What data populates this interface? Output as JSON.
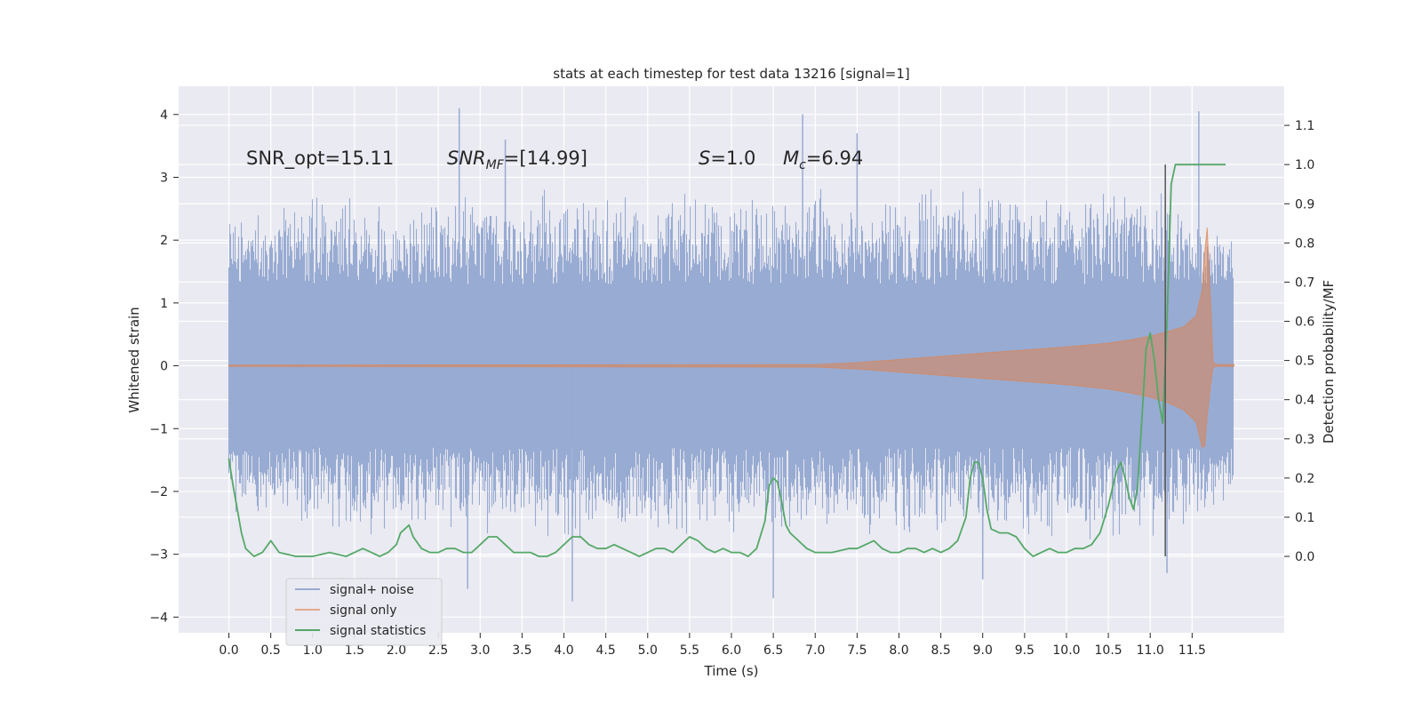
{
  "chart_data": {
    "type": "line",
    "title": "stats at each timestep for test data 13216 [signal=1]",
    "xlabel": "Time (s)",
    "ylabel_left": "Whitened strain",
    "ylabel_right": "Detection probability/MF",
    "xlim": [
      -0.6,
      12.6
    ],
    "ylim_left": [
      -4.25,
      4.45
    ],
    "ylim_right": [
      -0.195,
      1.2
    ],
    "x_ticks": [
      0.0,
      0.5,
      1.0,
      1.5,
      2.0,
      2.5,
      3.0,
      3.5,
      4.0,
      4.5,
      5.0,
      5.5,
      6.0,
      6.5,
      7.0,
      7.5,
      8.0,
      8.5,
      9.0,
      9.5,
      10.0,
      10.5,
      11.0,
      11.5
    ],
    "x_tick_labels": [
      "0.0",
      "0.5",
      "1.0",
      "1.5",
      "2.0",
      "2.5",
      "3.0",
      "3.5",
      "4.0",
      "4.5",
      "5.0",
      "5.5",
      "6.0",
      "6.5",
      "7.0",
      "7.5",
      "8.0",
      "8.5",
      "9.0",
      "9.5",
      "10.0",
      "10.5",
      "11.0",
      "11.5"
    ],
    "y_left_ticks": [
      -4,
      -3,
      -2,
      -1,
      0,
      1,
      2,
      3,
      4
    ],
    "y_left_tick_labels": [
      "−4",
      "−3",
      "−2",
      "−1",
      "0",
      "1",
      "2",
      "3",
      "4"
    ],
    "y_right_ticks": [
      0.0,
      0.1,
      0.2,
      0.3,
      0.4,
      0.5,
      0.6,
      0.7,
      0.8,
      0.9,
      1.0,
      1.1
    ],
    "y_right_tick_labels": [
      "0.0",
      "0.1",
      "0.2",
      "0.3",
      "0.4",
      "0.5",
      "0.6",
      "0.7",
      "0.8",
      "0.9",
      "1.0",
      "1.1"
    ],
    "grid": true,
    "legend_position": "lower-left",
    "colors": {
      "background": "#eaeaf2",
      "grid": "#ffffff",
      "signal_noise": "#98abd2",
      "signal_only": "#dd8452",
      "signal_statistics": "#55a868",
      "marker_line": "#555555"
    },
    "annotations": {
      "snr_opt": "SNR_opt=15.11",
      "snr_mf_main": "SNR",
      "snr_mf_sub": "MF",
      "snr_mf_value": "=[14.99]",
      "s_symbol": "S",
      "s_value": "=1.0",
      "mc_symbol": "M",
      "mc_sub": "c",
      "mc_value": "=6.94"
    },
    "vertical_marker_x": 11.18,
    "series": [
      {
        "name": "signal+ noise",
        "axis": "left",
        "description_x_range": [
          0.0,
          12.0
        ],
        "envelope_points": [
          {
            "x": 0.0,
            "upper": 2.6,
            "lower": -2.5
          },
          {
            "x": 1.0,
            "upper": 2.8,
            "lower": -2.6
          },
          {
            "x": 2.0,
            "upper": 2.7,
            "lower": -2.8
          },
          {
            "x": 3.0,
            "upper": 2.9,
            "lower": -2.7
          },
          {
            "x": 4.0,
            "upper": 2.8,
            "lower": -2.9
          },
          {
            "x": 5.0,
            "upper": 2.8,
            "lower": -2.7
          },
          {
            "x": 6.0,
            "upper": 2.9,
            "lower": -2.8
          },
          {
            "x": 7.0,
            "upper": 2.9,
            "lower": -2.7
          },
          {
            "x": 8.0,
            "upper": 2.8,
            "lower": -2.8
          },
          {
            "x": 9.0,
            "upper": 2.9,
            "lower": -2.8
          },
          {
            "x": 10.0,
            "upper": 2.9,
            "lower": -2.8
          },
          {
            "x": 11.0,
            "upper": 3.0,
            "lower": -2.9
          },
          {
            "x": 12.0,
            "upper": 2.0,
            "lower": -2.3
          }
        ],
        "spikes": [
          {
            "x": 2.75,
            "y": 4.1
          },
          {
            "x": 6.85,
            "y": 4.0
          },
          {
            "x": 11.58,
            "y": 4.05
          },
          {
            "x": 4.1,
            "y": -3.75
          },
          {
            "x": 6.5,
            "y": -3.7
          },
          {
            "x": 2.85,
            "y": -3.55
          },
          {
            "x": 9.0,
            "y": -3.4
          },
          {
            "x": 11.2,
            "y": -3.3
          },
          {
            "x": 7.5,
            "y": 3.7
          },
          {
            "x": 3.3,
            "y": 3.6
          }
        ]
      },
      {
        "name": "signal only",
        "axis": "left",
        "x": [
          0.0,
          7.0,
          7.5,
          8.0,
          8.5,
          9.0,
          9.5,
          10.0,
          10.5,
          10.8,
          11.0,
          11.2,
          11.4,
          11.55,
          11.62,
          11.65,
          11.68,
          11.72,
          11.75,
          11.8,
          12.0
        ],
        "upper": [
          0.01,
          0.02,
          0.05,
          0.1,
          0.15,
          0.2,
          0.25,
          0.3,
          0.36,
          0.42,
          0.47,
          0.54,
          0.62,
          0.8,
          1.2,
          1.8,
          2.2,
          1.0,
          0.05,
          0.02,
          0.02
        ],
        "lower": [
          -0.01,
          -0.02,
          -0.05,
          -0.1,
          -0.15,
          -0.2,
          -0.25,
          -0.3,
          -0.37,
          -0.44,
          -0.5,
          -0.58,
          -0.7,
          -0.9,
          -1.3,
          -1.28,
          -0.8,
          -0.3,
          -0.02,
          -0.01,
          -0.01
        ]
      },
      {
        "name": "signal statistics",
        "axis": "right",
        "x": [
          0.0,
          0.05,
          0.1,
          0.15,
          0.2,
          0.3,
          0.4,
          0.5,
          0.6,
          0.8,
          1.0,
          1.2,
          1.4,
          1.5,
          1.6,
          1.7,
          1.8,
          1.9,
          2.0,
          2.05,
          2.1,
          2.15,
          2.2,
          2.3,
          2.4,
          2.5,
          2.6,
          2.7,
          2.8,
          2.9,
          3.0,
          3.1,
          3.2,
          3.3,
          3.4,
          3.5,
          3.6,
          3.7,
          3.8,
          3.9,
          4.0,
          4.1,
          4.2,
          4.3,
          4.4,
          4.5,
          4.6,
          4.7,
          4.8,
          4.9,
          5.0,
          5.1,
          5.2,
          5.3,
          5.4,
          5.5,
          5.6,
          5.7,
          5.8,
          5.9,
          6.0,
          6.1,
          6.2,
          6.3,
          6.4,
          6.45,
          6.5,
          6.55,
          6.6,
          6.65,
          6.7,
          6.8,
          6.9,
          7.0,
          7.2,
          7.4,
          7.5,
          7.6,
          7.7,
          7.8,
          7.9,
          8.0,
          8.1,
          8.2,
          8.3,
          8.4,
          8.5,
          8.6,
          8.7,
          8.8,
          8.85,
          8.9,
          8.95,
          9.0,
          9.05,
          9.1,
          9.2,
          9.3,
          9.4,
          9.5,
          9.6,
          9.7,
          9.8,
          9.9,
          10.0,
          10.1,
          10.2,
          10.3,
          10.4,
          10.5,
          10.6,
          10.65,
          10.7,
          10.75,
          10.8,
          10.85,
          10.9,
          10.95,
          11.0,
          11.05,
          11.1,
          11.15,
          11.2,
          11.25,
          11.3,
          11.35,
          11.4,
          11.5,
          11.6,
          11.7,
          11.8,
          11.9
        ],
        "values": [
          0.25,
          0.18,
          0.12,
          0.06,
          0.02,
          0.0,
          0.01,
          0.04,
          0.01,
          0.0,
          0.0,
          0.01,
          0.0,
          0.01,
          0.02,
          0.01,
          0.0,
          0.01,
          0.03,
          0.06,
          0.07,
          0.08,
          0.05,
          0.02,
          0.01,
          0.01,
          0.02,
          0.02,
          0.01,
          0.01,
          0.03,
          0.05,
          0.05,
          0.03,
          0.01,
          0.01,
          0.01,
          0.0,
          0.0,
          0.01,
          0.03,
          0.05,
          0.05,
          0.03,
          0.02,
          0.02,
          0.03,
          0.02,
          0.01,
          0.0,
          0.01,
          0.02,
          0.02,
          0.01,
          0.03,
          0.05,
          0.04,
          0.02,
          0.01,
          0.02,
          0.01,
          0.01,
          0.0,
          0.02,
          0.09,
          0.18,
          0.2,
          0.19,
          0.14,
          0.08,
          0.06,
          0.04,
          0.02,
          0.01,
          0.01,
          0.02,
          0.02,
          0.03,
          0.04,
          0.02,
          0.01,
          0.01,
          0.02,
          0.02,
          0.01,
          0.02,
          0.01,
          0.02,
          0.04,
          0.1,
          0.2,
          0.24,
          0.24,
          0.2,
          0.12,
          0.07,
          0.06,
          0.06,
          0.05,
          0.02,
          0.0,
          0.01,
          0.02,
          0.01,
          0.01,
          0.02,
          0.02,
          0.03,
          0.06,
          0.13,
          0.22,
          0.24,
          0.2,
          0.15,
          0.12,
          0.18,
          0.35,
          0.53,
          0.57,
          0.5,
          0.4,
          0.34,
          0.6,
          0.95,
          1.0,
          1.0,
          1.0,
          1.0,
          1.0,
          1.0,
          1.0,
          1.0
        ]
      }
    ]
  }
}
